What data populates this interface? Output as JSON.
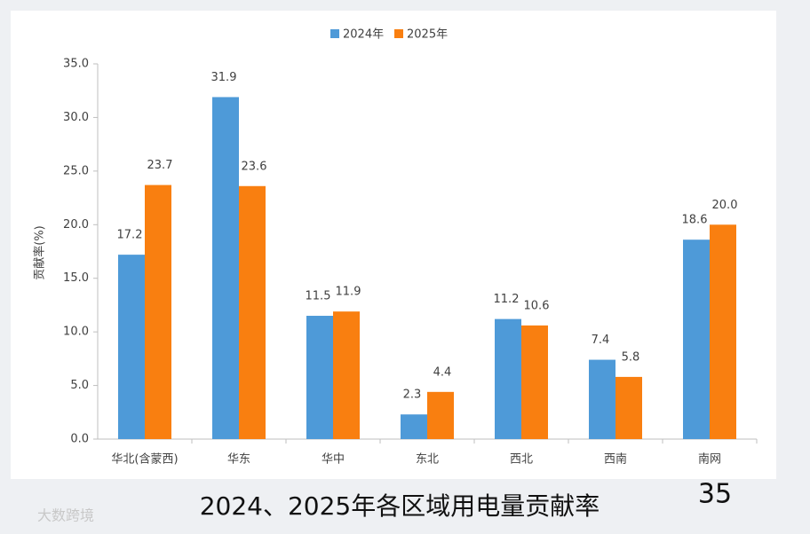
{
  "chart_data": {
    "type": "bar",
    "y_label": "贡献率(%)",
    "categories": [
      "华北(含蒙西)",
      "华东",
      "华中",
      "东北",
      "西北",
      "西南",
      "南网"
    ],
    "series": [
      {
        "name": "2024年",
        "color": "#4e9ad8",
        "values": [
          17.2,
          31.9,
          11.5,
          2.3,
          11.2,
          7.4,
          18.6
        ],
        "value_labels": [
          "17.2",
          "31.9",
          "11.5",
          "2.3",
          "11.2",
          "7.4",
          "18.6"
        ]
      },
      {
        "name": "2025年",
        "color": "#f97f10",
        "values": [
          23.7,
          23.6,
          11.9,
          4.4,
          10.6,
          5.8,
          20
        ],
        "value_labels": [
          "23.7",
          "23.6",
          "11.9",
          "4.4",
          "10.6",
          "5.8",
          "20.0"
        ]
      }
    ],
    "ylim": [
      0,
      35
    ],
    "yticks": [
      {
        "value": 0,
        "label": "0.0"
      },
      {
        "value": 5,
        "label": "5.0"
      },
      {
        "value": 10,
        "label": "10.0"
      },
      {
        "value": 15,
        "label": "15.0"
      },
      {
        "value": 20,
        "label": "20.0"
      },
      {
        "value": 25,
        "label": "25.0"
      },
      {
        "value": 30,
        "label": "30.0"
      },
      {
        "value": 35,
        "label": "35.0"
      }
    ],
    "legend": "top"
  },
  "slide_title": "2024、2025年各区域用电量贡献率",
  "page_number": "35",
  "watermark": "大数跨境"
}
